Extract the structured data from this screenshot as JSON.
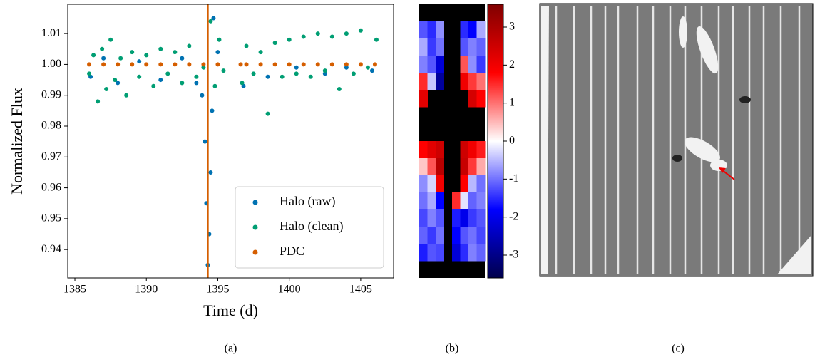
{
  "chart_data": [
    {
      "type": "scatter",
      "label": "(a)",
      "x_label": "Time (d)",
      "y_label": "Normalized Flux",
      "xlim": [
        1384.5,
        1407.3
      ],
      "xticks": [
        1385,
        1390,
        1395,
        1400,
        1405
      ],
      "ylim": [
        0.9308,
        1.0195
      ],
      "yticks": [
        0.94,
        0.95,
        0.96,
        0.97,
        0.98,
        0.99,
        {
          "value": 1.0,
          "label": "1.00"
        },
        1.01
      ],
      "vline": 1394.3,
      "vline_color": "#d55e00",
      "legend": "lower right",
      "series": [
        {
          "name": "Halo (raw)",
          "color": "#0072b2",
          "x": [
            1386.1,
            1387.0,
            1388.0,
            1389.5,
            1391.0,
            1392.5,
            1393.5,
            1393.9,
            1394.1,
            1394.2,
            1394.3,
            1394.4,
            1394.5,
            1394.6,
            1394.7,
            1395.0,
            1396.8,
            1398.5,
            1400.5,
            1402.5,
            1404.0,
            1405.8
          ],
          "values": [
            0.996,
            1.002,
            0.994,
            1.001,
            0.995,
            1.002,
            0.994,
            0.99,
            0.975,
            0.955,
            0.935,
            0.945,
            0.965,
            0.985,
            1.015,
            1.004,
            0.993,
            0.996,
            0.999,
            0.997,
            0.999,
            0.998
          ]
        },
        {
          "name": "Halo (clean)",
          "color": "#009e73",
          "x": [
            1386.0,
            1386.3,
            1386.6,
            1386.9,
            1387.2,
            1387.5,
            1387.8,
            1388.2,
            1388.6,
            1389.0,
            1389.5,
            1390.0,
            1390.5,
            1391.0,
            1391.5,
            1392.0,
            1392.5,
            1393.0,
            1393.5,
            1394.0,
            1394.5,
            1394.8,
            1395.1,
            1395.4,
            1396.7,
            1397.0,
            1397.5,
            1398.0,
            1398.5,
            1399.0,
            1399.5,
            1400.0,
            1400.5,
            1401.0,
            1401.5,
            1402.0,
            1402.5,
            1403.0,
            1403.5,
            1404.0,
            1404.5,
            1405.0,
            1405.5,
            1406.1
          ],
          "values": [
            0.997,
            1.003,
            0.988,
            1.005,
            0.992,
            1.008,
            0.995,
            1.002,
            0.99,
            1.004,
            0.996,
            1.003,
            0.993,
            1.005,
            0.997,
            1.004,
            0.994,
            1.006,
            0.996,
            0.999,
            1.014,
            0.993,
            1.008,
            0.998,
            0.994,
            1.006,
            0.997,
            1.004,
            0.984,
            1.007,
            0.996,
            1.008,
            0.997,
            1.009,
            0.996,
            1.01,
            0.998,
            1.009,
            0.992,
            1.01,
            0.997,
            1.011,
            0.999,
            1.008
          ]
        },
        {
          "name": "PDC",
          "color": "#d55e00",
          "x": [
            1386.0,
            1387.0,
            1388.0,
            1389.0,
            1390.0,
            1391.0,
            1392.0,
            1393.0,
            1394.0,
            1395.0,
            1396.6,
            1397.0,
            1398.0,
            1399.0,
            1400.0,
            1401.0,
            1402.0,
            1403.0,
            1404.0,
            1405.0,
            1406.0
          ],
          "values": [
            1.0,
            1.0,
            1.0,
            1.0,
            1.0,
            1.0,
            1.0,
            1.0,
            1.0,
            1.0,
            1.0,
            1.0,
            1.0,
            1.0,
            1.0,
            1.0,
            1.0,
            1.0,
            1.0,
            1.0,
            1.0
          ]
        }
      ]
    },
    {
      "type": "heatmap",
      "label": "(b)",
      "colormap": "seismic",
      "clim": [
        -3.6,
        3.6
      ],
      "cticks": [
        -3,
        -2,
        -1,
        0,
        1,
        2,
        3
      ],
      "values": [
        [
          null,
          null,
          null,
          null,
          null,
          null,
          null,
          null
        ],
        [
          -1.2,
          -1.5,
          -0.8,
          null,
          null,
          -1.5,
          -1.8,
          -0.6
        ],
        [
          -0.6,
          -1.4,
          -1.0,
          null,
          null,
          -1.2,
          -0.9,
          -1.1
        ],
        [
          -0.9,
          -1.2,
          -2.2,
          null,
          null,
          1.2,
          -0.8,
          -1.4
        ],
        [
          1.5,
          -0.4,
          -2.8,
          null,
          null,
          2.0,
          1.4,
          1.0
        ],
        [
          2.2,
          null,
          null,
          null,
          null,
          null,
          2.4,
          1.8
        ],
        [
          null,
          null,
          null,
          null,
          null,
          null,
          null,
          null
        ],
        [
          null,
          null,
          null,
          null,
          null,
          null,
          null,
          null
        ],
        [
          1.8,
          2.2,
          2.5,
          null,
          null,
          2.5,
          2.0,
          1.6
        ],
        [
          0.4,
          1.2,
          2.8,
          null,
          null,
          2.6,
          1.4,
          0.6
        ],
        [
          -0.8,
          -0.3,
          2.0,
          null,
          null,
          1.8,
          -0.5,
          -1.0
        ],
        [
          -1.0,
          -0.6,
          -1.8,
          null,
          1.5,
          -0.2,
          -1.1,
          -0.9
        ],
        [
          -1.3,
          -0.9,
          -1.2,
          null,
          -1.6,
          -2.0,
          -1.4,
          -1.2
        ],
        [
          -1.1,
          -1.4,
          -1.0,
          null,
          -1.8,
          -1.2,
          -1.0,
          -1.3
        ],
        [
          -1.6,
          -1.2,
          -1.3,
          null,
          -2.2,
          -1.5,
          -0.9,
          -1.1
        ],
        [
          null,
          null,
          null,
          null,
          null,
          null,
          null,
          null
        ]
      ]
    }
  ],
  "image_panel": {
    "label": "(c)"
  }
}
